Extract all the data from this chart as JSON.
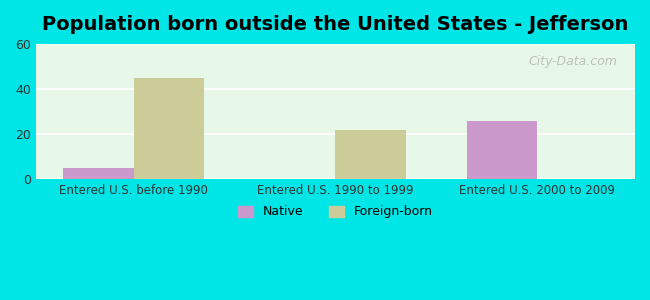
{
  "title": "Population born outside the United States - Jefferson",
  "groups": [
    "Entered U.S. before 1990",
    "Entered U.S. 1990 to 1999",
    "Entered U.S. 2000 to 2009"
  ],
  "native_values": [
    5,
    0,
    26
  ],
  "foreign_values": [
    45,
    22,
    0
  ],
  "native_color": "#cc99cc",
  "foreign_color": "#cccc99",
  "ylim": [
    0,
    60
  ],
  "yticks": [
    0,
    20,
    40,
    60
  ],
  "background_outer": "#00e5e5",
  "background_inner": "#eeffee",
  "title_fontsize": 14,
  "legend_native": "Native",
  "legend_foreign": "Foreign-born",
  "bar_width": 0.35,
  "watermark": "City-Data.com"
}
